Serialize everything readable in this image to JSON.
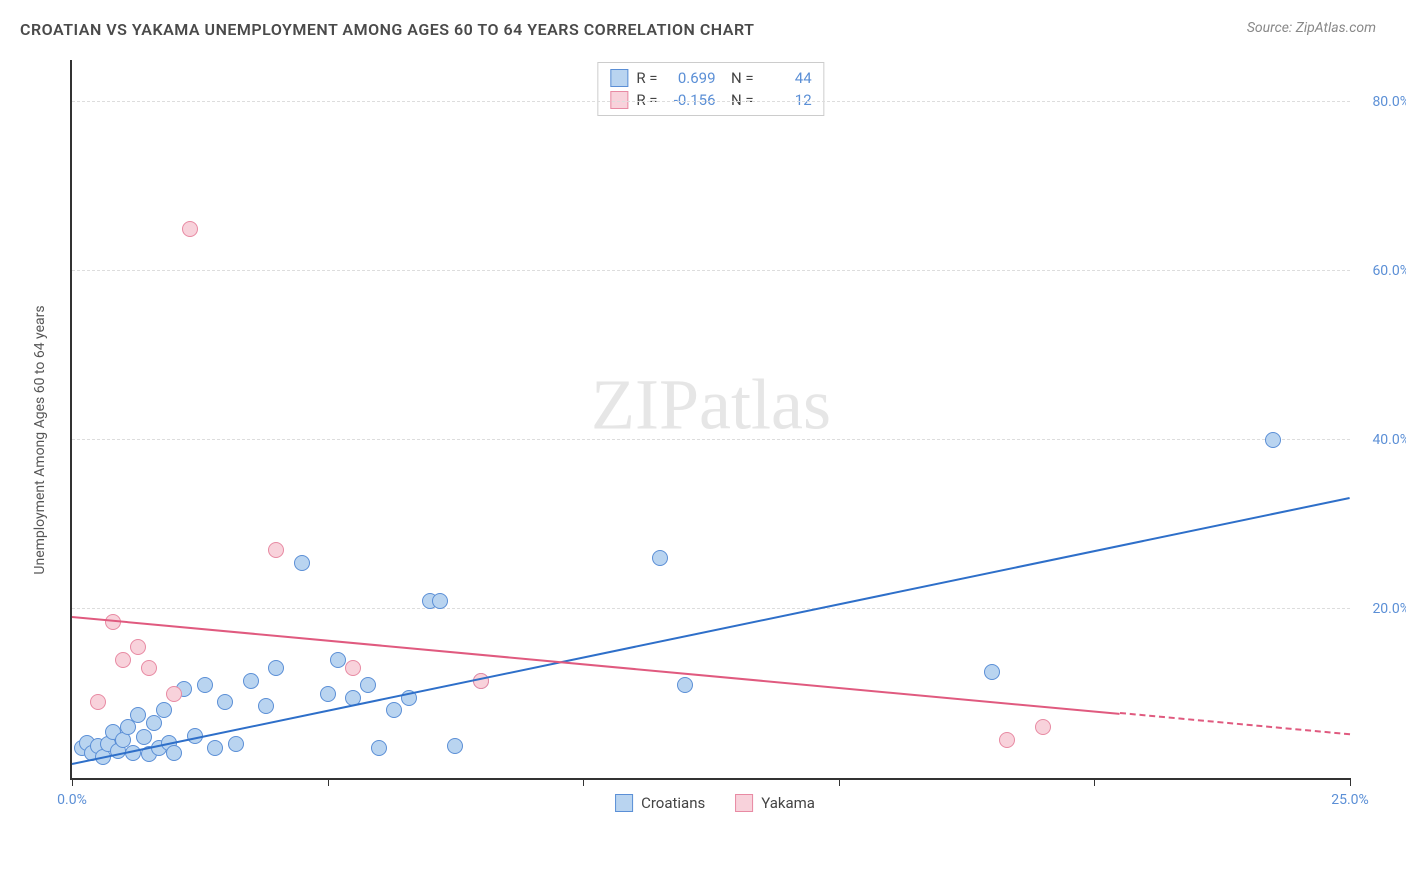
{
  "title": "CROATIAN VS YAKAMA UNEMPLOYMENT AMONG AGES 60 TO 64 YEARS CORRELATION CHART",
  "source": "Source: ZipAtlas.com",
  "y_axis_label": "Unemployment Among Ages 60 to 64 years",
  "watermark_bold": "ZIP",
  "watermark_light": "atlas",
  "chart": {
    "type": "scatter",
    "xlim": [
      0,
      25
    ],
    "ylim": [
      0,
      85
    ],
    "x_ticks": [
      0,
      5,
      10,
      15,
      20,
      25
    ],
    "x_tick_labels": {
      "0": "0.0%",
      "25": "25.0%"
    },
    "y_ticks": [
      20,
      40,
      60,
      80
    ],
    "y_tick_labels": {
      "20": "20.0%",
      "40": "40.0%",
      "60": "60.0%",
      "80": "80.0%"
    },
    "grid_color": "#dddddd",
    "axis_color": "#333333",
    "label_color": "#5b8fd6",
    "point_radius": 8,
    "series": [
      {
        "name": "Croatians",
        "fill": "#b9d4f0",
        "stroke": "#5b8fd6",
        "trend_color": "#2e6fc9",
        "trend": {
          "x1": 0,
          "y1": 1.5,
          "x2": 25,
          "y2": 33,
          "dash_after_x": null
        },
        "stats": {
          "R": "0.699",
          "N": "44"
        },
        "points": [
          [
            0.2,
            3.5
          ],
          [
            0.3,
            4.2
          ],
          [
            0.4,
            3.0
          ],
          [
            0.5,
            3.8
          ],
          [
            0.6,
            2.5
          ],
          [
            0.7,
            4.0
          ],
          [
            0.8,
            5.5
          ],
          [
            0.9,
            3.2
          ],
          [
            1.0,
            4.5
          ],
          [
            1.1,
            6.0
          ],
          [
            1.2,
            3.0
          ],
          [
            1.3,
            7.5
          ],
          [
            1.4,
            4.8
          ],
          [
            1.5,
            2.8
          ],
          [
            1.6,
            6.5
          ],
          [
            1.7,
            3.5
          ],
          [
            1.8,
            8.0
          ],
          [
            1.9,
            4.2
          ],
          [
            2.0,
            3.0
          ],
          [
            2.2,
            10.5
          ],
          [
            2.4,
            5.0
          ],
          [
            2.6,
            11.0
          ],
          [
            2.8,
            3.5
          ],
          [
            3.0,
            9.0
          ],
          [
            3.2,
            4.0
          ],
          [
            3.5,
            11.5
          ],
          [
            3.8,
            8.5
          ],
          [
            4.0,
            13.0
          ],
          [
            4.5,
            25.5
          ],
          [
            5.0,
            10.0
          ],
          [
            5.2,
            14.0
          ],
          [
            5.5,
            9.5
          ],
          [
            5.8,
            11.0
          ],
          [
            6.0,
            3.5
          ],
          [
            6.3,
            8.0
          ],
          [
            6.6,
            9.5
          ],
          [
            7.0,
            21.0
          ],
          [
            7.2,
            21.0
          ],
          [
            7.5,
            3.8
          ],
          [
            8.0,
            11.5
          ],
          [
            11.5,
            26.0
          ],
          [
            12.0,
            11.0
          ],
          [
            18.0,
            12.5
          ],
          [
            23.5,
            40.0
          ]
        ]
      },
      {
        "name": "Yakama",
        "fill": "#f8d2db",
        "stroke": "#e88aa3",
        "trend_color": "#e05a7f",
        "trend": {
          "x1": 0,
          "y1": 19.0,
          "x2": 25,
          "y2": 5.0,
          "dash_after_x": 20.5
        },
        "stats": {
          "R": "-0.156",
          "N": "12"
        },
        "points": [
          [
            0.5,
            9.0
          ],
          [
            0.8,
            18.5
          ],
          [
            1.0,
            14.0
          ],
          [
            1.3,
            15.5
          ],
          [
            1.5,
            13.0
          ],
          [
            2.0,
            10.0
          ],
          [
            2.3,
            65.0
          ],
          [
            4.0,
            27.0
          ],
          [
            5.5,
            13.0
          ],
          [
            8.0,
            11.5
          ],
          [
            18.3,
            4.5
          ],
          [
            19.0,
            6.0
          ]
        ]
      }
    ]
  },
  "legend": {
    "series1_label": "Croatians",
    "series2_label": "Yakama"
  }
}
